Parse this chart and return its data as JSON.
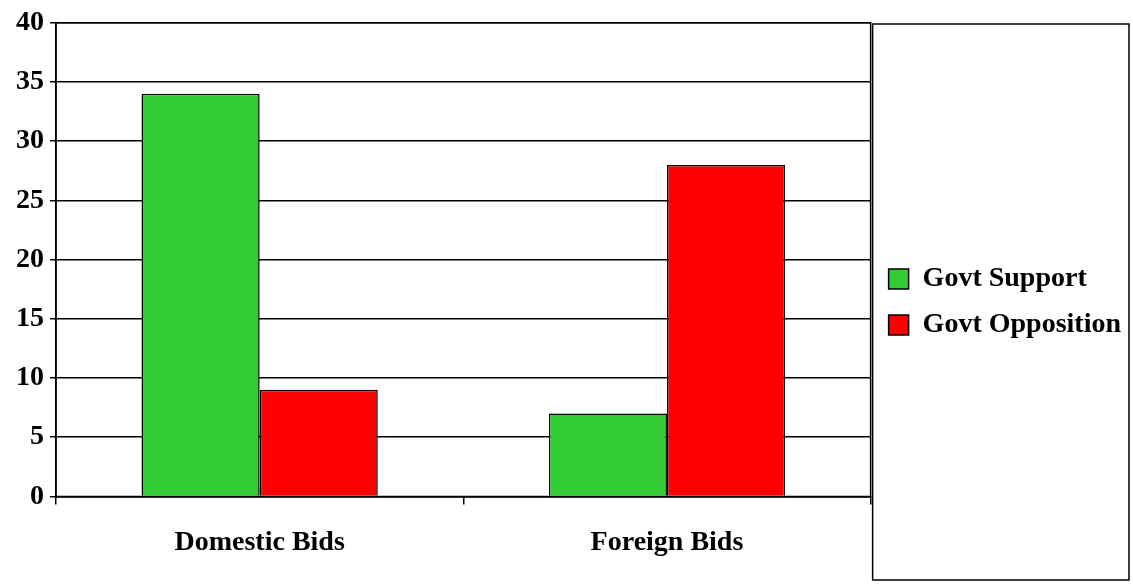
{
  "chart_data": {
    "type": "bar",
    "categories": [
      "Domestic Bids",
      "Foreign Bids"
    ],
    "series": [
      {
        "name": "Govt Support",
        "color": "#33cc33",
        "values": [
          34,
          7
        ]
      },
      {
        "name": "Govt Opposition",
        "color": "#ff0000",
        "values": [
          9,
          28
        ]
      }
    ],
    "ylim": [
      0,
      40
    ],
    "yticks": [
      0,
      5,
      10,
      15,
      20,
      25,
      30,
      35,
      40
    ],
    "grid": "y",
    "legend": "right"
  }
}
